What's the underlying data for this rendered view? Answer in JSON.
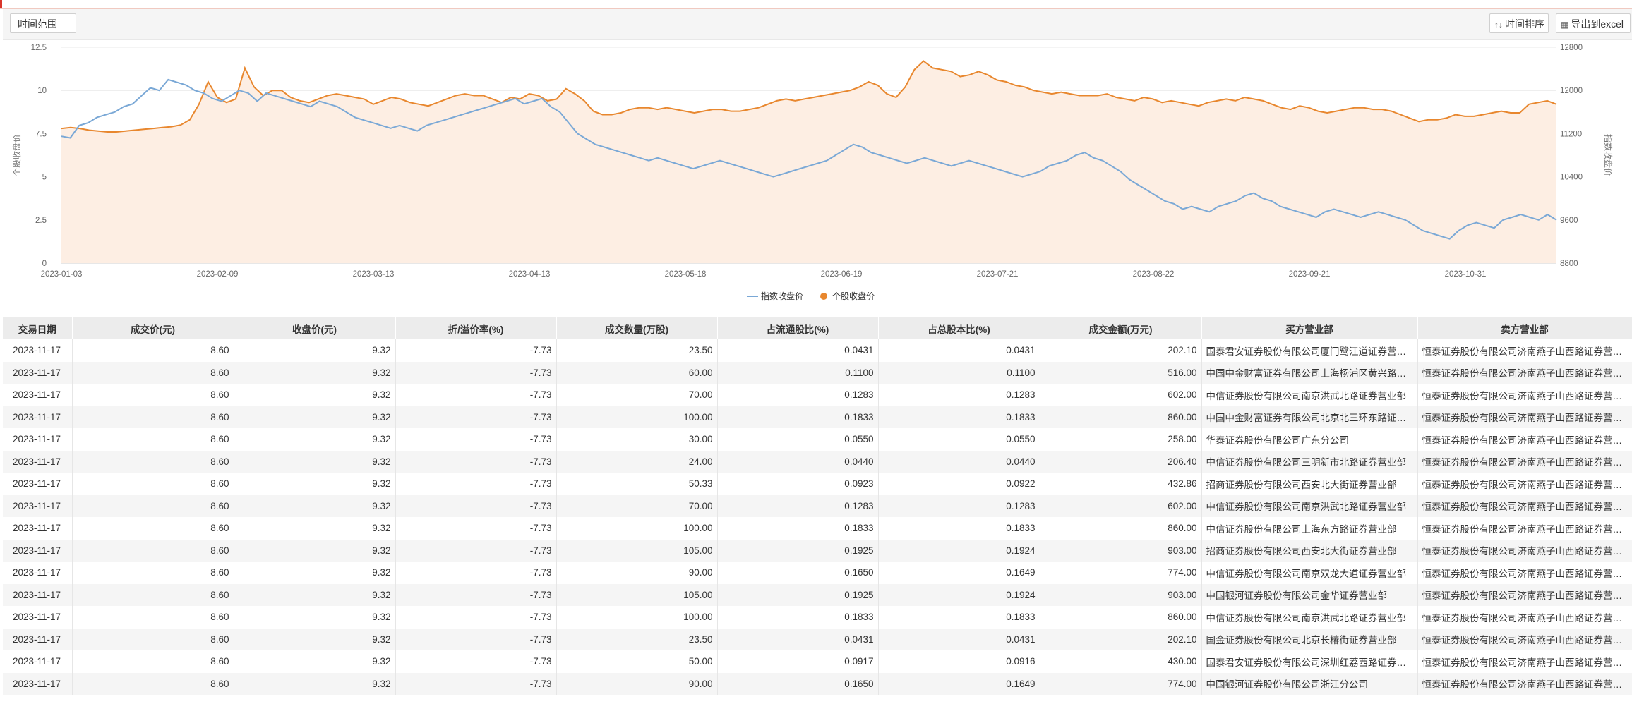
{
  "toolbar": {
    "range_label": "时间范围",
    "sort_label": "时间排序",
    "export_label": "导出到excel"
  },
  "chart_data": {
    "type": "line",
    "x_ticks": [
      "2023-01-03",
      "2023-02-09",
      "2023-03-13",
      "2023-04-13",
      "2023-05-18",
      "2023-06-19",
      "2023-07-21",
      "2023-08-22",
      "2023-09-21",
      "2023-10-31"
    ],
    "y_left": {
      "label": "个股收盘价",
      "range": [
        0,
        12.5
      ],
      "ticks": [
        "0",
        "2.5",
        "5",
        "7.5",
        "10",
        "12.5"
      ]
    },
    "y_right": {
      "label": "指数收盘价",
      "range": [
        8800,
        12800
      ],
      "ticks": [
        "8800",
        "9600",
        "10400",
        "11200",
        "12000",
        "12800"
      ]
    },
    "legend": {
      "position": "bottom",
      "items": [
        "指数收盘价",
        "个股收盘价"
      ]
    },
    "colors": {
      "index": "#7aa8d6",
      "stock": "#e8872e",
      "stock_fill": "#fdeee3"
    },
    "series": [
      {
        "name": "个股收盘价",
        "axis": "left",
        "values": [
          7.8,
          7.85,
          7.8,
          7.7,
          7.65,
          7.6,
          7.6,
          7.65,
          7.7,
          7.75,
          7.8,
          7.85,
          7.9,
          8.0,
          8.3,
          9.2,
          10.5,
          9.6,
          9.3,
          9.5,
          11.3,
          10.2,
          9.7,
          10.0,
          10.0,
          9.6,
          9.4,
          9.3,
          9.5,
          9.7,
          9.8,
          9.7,
          9.6,
          9.5,
          9.2,
          9.4,
          9.6,
          9.5,
          9.3,
          9.2,
          9.1,
          9.3,
          9.5,
          9.7,
          9.8,
          9.7,
          9.7,
          9.5,
          9.3,
          9.6,
          9.5,
          9.8,
          9.7,
          9.4,
          9.5,
          10.1,
          9.8,
          9.4,
          8.8,
          8.6,
          8.6,
          8.7,
          8.9,
          9.0,
          9.0,
          8.9,
          9.0,
          8.9,
          8.8,
          8.7,
          8.8,
          8.9,
          8.9,
          8.8,
          8.8,
          8.9,
          9.0,
          9.2,
          9.4,
          9.5,
          9.4,
          9.5,
          9.6,
          9.7,
          9.8,
          9.9,
          10.0,
          10.2,
          10.5,
          10.3,
          9.8,
          9.6,
          10.2,
          11.2,
          11.7,
          11.3,
          11.2,
          11.1,
          10.8,
          10.9,
          11.1,
          10.9,
          10.6,
          10.5,
          10.3,
          10.2,
          10.0,
          9.9,
          9.8,
          9.9,
          9.8,
          9.7,
          9.7,
          9.7,
          9.8,
          9.6,
          9.5,
          9.4,
          9.6,
          9.5,
          9.3,
          9.4,
          9.3,
          9.2,
          9.1,
          9.3,
          9.4,
          9.5,
          9.4,
          9.6,
          9.5,
          9.4,
          9.2,
          9.0,
          8.9,
          9.1,
          9.0,
          8.8,
          8.7,
          8.8,
          8.9,
          9.0,
          9.0,
          8.9,
          8.9,
          8.8,
          8.6,
          8.4,
          8.2,
          8.3,
          8.3,
          8.4,
          8.6,
          8.5,
          8.5,
          8.6,
          8.7,
          8.8,
          8.7,
          8.7,
          9.2,
          9.3,
          9.4,
          9.2
        ]
      },
      {
        "name": "指数收盘价",
        "axis": "right",
        "values": [
          11150,
          11120,
          11350,
          11400,
          11500,
          11550,
          11600,
          11700,
          11750,
          11900,
          12050,
          12000,
          12200,
          12150,
          12100,
          12000,
          11950,
          11850,
          11800,
          11900,
          12000,
          11950,
          11800,
          11950,
          11900,
          11850,
          11800,
          11750,
          11700,
          11800,
          11750,
          11700,
          11600,
          11500,
          11450,
          11400,
          11350,
          11300,
          11350,
          11300,
          11250,
          11350,
          11400,
          11450,
          11500,
          11550,
          11600,
          11650,
          11700,
          11750,
          11800,
          11850,
          11750,
          11800,
          11850,
          11700,
          11600,
          11400,
          11200,
          11100,
          11000,
          10950,
          10900,
          10850,
          10800,
          10750,
          10700,
          10750,
          10700,
          10650,
          10600,
          10550,
          10600,
          10650,
          10700,
          10650,
          10600,
          10550,
          10500,
          10450,
          10400,
          10450,
          10500,
          10550,
          10600,
          10650,
          10700,
          10800,
          10900,
          11000,
          10950,
          10850,
          10800,
          10750,
          10700,
          10650,
          10700,
          10750,
          10700,
          10650,
          10600,
          10650,
          10700,
          10650,
          10600,
          10550,
          10500,
          10450,
          10400,
          10450,
          10500,
          10600,
          10650,
          10700,
          10800,
          10850,
          10750,
          10700,
          10600,
          10500,
          10350,
          10250,
          10150,
          10050,
          9950,
          9900,
          9800,
          9850,
          9800,
          9750,
          9850,
          9900,
          9950,
          10050,
          10100,
          10000,
          9950,
          9850,
          9800,
          9750,
          9700,
          9650,
          9750,
          9800,
          9750,
          9700,
          9650,
          9700,
          9750,
          9700,
          9650,
          9600,
          9500,
          9400,
          9350,
          9300,
          9250,
          9400,
          9500,
          9550,
          9500,
          9450,
          9600,
          9650,
          9700,
          9650,
          9600,
          9700,
          9600
        ]
      }
    ]
  },
  "table": {
    "headers": [
      "交易日期",
      "成交价(元)",
      "收盘价(元)",
      "折/溢价率(%)",
      "成交数量(万股)",
      "占流通股比(%)",
      "占总股本比(%)",
      "成交金额(万元)",
      "买方营业部",
      "卖方营业部"
    ],
    "rows": [
      [
        "2023-11-17",
        "8.60",
        "9.32",
        "-7.73",
        "23.50",
        "0.0431",
        "0.0431",
        "202.10",
        "国泰君安证券股份有限公司厦门鹭江道证券营业部",
        "恒泰证券股份有限公司济南燕子山西路证券营业部"
      ],
      [
        "2023-11-17",
        "8.60",
        "9.32",
        "-7.73",
        "60.00",
        "0.1100",
        "0.1100",
        "516.00",
        "中国中金财富证券有限公司上海杨浦区黄兴路证券营业部",
        "恒泰证券股份有限公司济南燕子山西路证券营业部"
      ],
      [
        "2023-11-17",
        "8.60",
        "9.32",
        "-7.73",
        "70.00",
        "0.1283",
        "0.1283",
        "602.00",
        "中信证券股份有限公司南京洪武北路证券营业部",
        "恒泰证券股份有限公司济南燕子山西路证券营业部"
      ],
      [
        "2023-11-17",
        "8.60",
        "9.32",
        "-7.73",
        "100.00",
        "0.1833",
        "0.1833",
        "860.00",
        "中国中金财富证券有限公司北京北三环东路证券营业部",
        "恒泰证券股份有限公司济南燕子山西路证券营业部"
      ],
      [
        "2023-11-17",
        "8.60",
        "9.32",
        "-7.73",
        "30.00",
        "0.0550",
        "0.0550",
        "258.00",
        "华泰证券股份有限公司广东分公司",
        "恒泰证券股份有限公司济南燕子山西路证券营业部"
      ],
      [
        "2023-11-17",
        "8.60",
        "9.32",
        "-7.73",
        "24.00",
        "0.0440",
        "0.0440",
        "206.40",
        "中信证券股份有限公司三明新市北路证券营业部",
        "恒泰证券股份有限公司济南燕子山西路证券营业部"
      ],
      [
        "2023-11-17",
        "8.60",
        "9.32",
        "-7.73",
        "50.33",
        "0.0923",
        "0.0922",
        "432.86",
        "招商证券股份有限公司西安北大街证券营业部",
        "恒泰证券股份有限公司济南燕子山西路证券营业部"
      ],
      [
        "2023-11-17",
        "8.60",
        "9.32",
        "-7.73",
        "70.00",
        "0.1283",
        "0.1283",
        "602.00",
        "中信证券股份有限公司南京洪武北路证券营业部",
        "恒泰证券股份有限公司济南燕子山西路证券营业部"
      ],
      [
        "2023-11-17",
        "8.60",
        "9.32",
        "-7.73",
        "100.00",
        "0.1833",
        "0.1833",
        "860.00",
        "中信证券股份有限公司上海东方路证券营业部",
        "恒泰证券股份有限公司济南燕子山西路证券营业部"
      ],
      [
        "2023-11-17",
        "8.60",
        "9.32",
        "-7.73",
        "105.00",
        "0.1925",
        "0.1924",
        "903.00",
        "招商证券股份有限公司西安北大街证券营业部",
        "恒泰证券股份有限公司济南燕子山西路证券营业部"
      ],
      [
        "2023-11-17",
        "8.60",
        "9.32",
        "-7.73",
        "90.00",
        "0.1650",
        "0.1649",
        "774.00",
        "中信证券股份有限公司南京双龙大道证券营业部",
        "恒泰证券股份有限公司济南燕子山西路证券营业部"
      ],
      [
        "2023-11-17",
        "8.60",
        "9.32",
        "-7.73",
        "105.00",
        "0.1925",
        "0.1924",
        "903.00",
        "中国银河证券股份有限公司金华证券营业部",
        "恒泰证券股份有限公司济南燕子山西路证券营业部"
      ],
      [
        "2023-11-17",
        "8.60",
        "9.32",
        "-7.73",
        "100.00",
        "0.1833",
        "0.1833",
        "860.00",
        "中信证券股份有限公司南京洪武北路证券营业部",
        "恒泰证券股份有限公司济南燕子山西路证券营业部"
      ],
      [
        "2023-11-17",
        "8.60",
        "9.32",
        "-7.73",
        "23.50",
        "0.0431",
        "0.0431",
        "202.10",
        "国金证券股份有限公司北京长椿街证券营业部",
        "恒泰证券股份有限公司济南燕子山西路证券营业部"
      ],
      [
        "2023-11-17",
        "8.60",
        "9.32",
        "-7.73",
        "50.00",
        "0.0917",
        "0.0916",
        "430.00",
        "国泰君安证券股份有限公司深圳红荔西路证券营业部",
        "恒泰证券股份有限公司济南燕子山西路证券营业部"
      ],
      [
        "2023-11-17",
        "8.60",
        "9.32",
        "-7.73",
        "90.00",
        "0.1650",
        "0.1649",
        "774.00",
        "中国银河证券股份有限公司浙江分公司",
        "恒泰证券股份有限公司济南燕子山西路证券营业部"
      ]
    ]
  }
}
